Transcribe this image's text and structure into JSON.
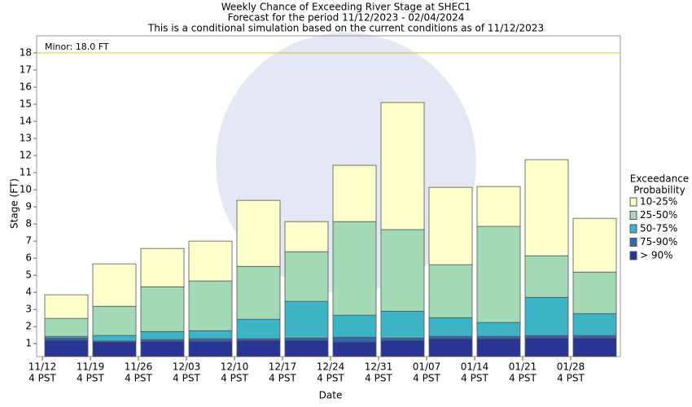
{
  "chart_data": {
    "type": "range-bar",
    "title": [
      "Weekly Chance of Exceeding River Stage at SHEC1",
      "Forecast for the period 11/12/2023 - 02/04/2024",
      "This is a conditional simulation based on the current conditions as of 11/12/2023"
    ],
    "x_label": "Date",
    "y_label": "Stage (FT)",
    "categories": [
      "11/12",
      "11/19",
      "11/26",
      "12/03",
      "12/10",
      "12/17",
      "12/24",
      "12/31",
      "01/07",
      "01/14",
      "01/21",
      "01/28"
    ],
    "category_sublabel": "4 PST",
    "legend_title": [
      "Exceedance",
      "Probability"
    ],
    "series": [
      {
        "name": "> 90%",
        "color": "#283593",
        "values": [
          1.2,
          1.1,
          1.14,
          1.14,
          1.19,
          1.19,
          1.1,
          1.19,
          1.29,
          1.29,
          1.33,
          1.33
        ]
      },
      {
        "name": "75-90%",
        "color": "#3566b0",
        "values": [
          1.33,
          1.15,
          1.24,
          1.29,
          1.29,
          1.33,
          1.38,
          1.33,
          1.43,
          1.43,
          1.48,
          1.48
        ]
      },
      {
        "name": "50-75%",
        "color": "#3db3c6",
        "values": [
          1.43,
          1.48,
          1.71,
          1.76,
          2.43,
          3.48,
          2.67,
          2.9,
          2.52,
          2.24,
          3.71,
          2.76
        ]
      },
      {
        "name": "25-50%",
        "color": "#a3d9b4",
        "values": [
          2.48,
          3.19,
          4.33,
          4.67,
          5.52,
          6.38,
          8.14,
          7.67,
          5.62,
          7.86,
          6.14,
          5.19
        ]
      },
      {
        "name": "10-25%",
        "color": "#ffffcc",
        "values": [
          3.86,
          5.67,
          6.57,
          7.0,
          9.38,
          8.14,
          11.43,
          15.1,
          10.14,
          10.19,
          11.76,
          8.33
        ]
      }
    ],
    "threshold": {
      "label": "Minor: 18.0 FT",
      "value": 18,
      "color": "#cccc33"
    },
    "ylim": [
      0.25,
      19
    ],
    "yticks": [
      1,
      2,
      3,
      4,
      5,
      6,
      7,
      8,
      9,
      10,
      11,
      12,
      13,
      14,
      15,
      16,
      17,
      18
    ]
  }
}
